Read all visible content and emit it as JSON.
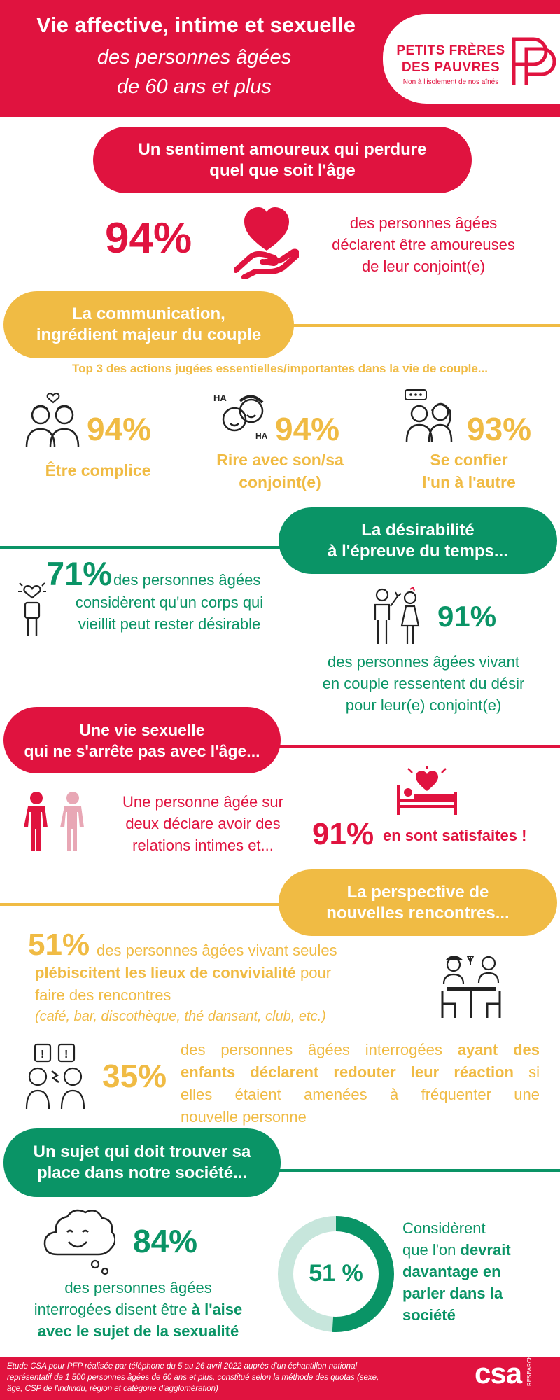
{
  "header": {
    "title": "Vie affective, intime et sexuelle",
    "subtitle_line1": "des personnes âgées",
    "subtitle_line2": "de 60 ans et plus",
    "logo_line1": "PETITS FRÈRES",
    "logo_line2": "DES PAUVRES",
    "logo_tagline": "Non à l'isolement de nos aînés"
  },
  "colors": {
    "red": "#e0133f",
    "yellow": "#f0bb44",
    "green": "#0a9466",
    "light_green": "#c7e6dc",
    "pink": "#e8a7b5"
  },
  "section1": {
    "title_line1": "Un sentiment amoureux qui perdure",
    "title_line2": "quel que soit l'âge",
    "stat": "94%",
    "icon": "heart-in-hand-icon",
    "text_line1": "des personnes âgées",
    "text_line2": "déclarent être amoureuses",
    "text_line3": "de leur conjoint(e)"
  },
  "section2": {
    "title_line1": "La communication,",
    "title_line2": "ingrédient majeur du couple",
    "subtitle": "Top 3 des actions jugées essentielles/importantes dans la vie de couple...",
    "items": [
      {
        "stat": "94%",
        "icon": "couple-love-icon",
        "label_line1": "Être complice",
        "label_line2": ""
      },
      {
        "stat": "94%",
        "icon": "laughing-couple-icon",
        "label_line1": "Rire avec son/sa",
        "label_line2": "conjoint(e)"
      },
      {
        "stat": "93%",
        "icon": "chatting-couple-icon",
        "label_line1": "Se confier",
        "label_line2": "l'un à l'autre"
      }
    ]
  },
  "section3": {
    "title_line1": "La désirabilité",
    "title_line2": "à l'épreuve du temps...",
    "stat1": "71%",
    "stat1_text_line1": "des personnes âgées",
    "stat1_text_line2": "considèrent qu'un corps qui",
    "stat1_text_line3": "vieillit peut rester désirable",
    "stat2": "91%",
    "stat2_text_line1": "des personnes âgées vivant",
    "stat2_text_line2": "en couple ressentent du désir",
    "stat2_text_line3": "pour leur(e) conjoint(e)"
  },
  "section4": {
    "title_line1": "Une vie sexuelle",
    "title_line2": "qui ne s'arrête pas avec l'âge...",
    "text_line1": "Une personne âgée sur",
    "text_line2": "deux déclare avoir des",
    "text_line3": "relations intimes et...",
    "stat": "91%",
    "stat_text": "en sont satisfaites !"
  },
  "section5": {
    "title_line1": "La perspective de",
    "title_line2": "nouvelles rencontres...",
    "stat1": "51%",
    "stat1_text_a": "des personnes âgées vivant seules",
    "stat1_text_b_bold": "plébiscitent les lieux de convivialité",
    "stat1_text_b_rest": " pour",
    "stat1_text_c": "faire des rencontres",
    "stat1_text_d": "(café, bar, discothèque, thé dansant, club, etc.)",
    "stat2": "35%",
    "stat2_line1_a": "des personnes âgées interrogées ",
    "stat2_line1_b": "ayant des",
    "stat2_line2_bold": "enfants déclarent redouter leur réaction",
    "stat2_line2_rest": " si",
    "stat2_line3": "elles étaient amenées à fréquenter une",
    "stat2_line4": "nouvelle personne"
  },
  "section6": {
    "title_line1": "Un sujet qui doit trouver sa",
    "title_line2": "place dans notre société...",
    "stat1": "84%",
    "stat1_text_line1": "des personnes âgées",
    "stat1_text_line2_a": "interrogées disent être ",
    "stat1_text_line2_b": "à l'aise",
    "stat1_text_line3": "avec le sujet de la sexualité",
    "donut_label": "51 %",
    "donut_value": 51,
    "text_line1": "Considèrent",
    "text_line2_a": "que l'on ",
    "text_line2_b": "devrait",
    "text_line3": "davantage en",
    "text_line4": "parler  dans la",
    "text_line5": "société"
  },
  "footer": {
    "text_line1": "Etude CSA pour PFP réalisée par téléphone du 5 au 26 avril 2022 auprès d'un échantillon national",
    "text_line2": "représentatif de 1 500 personnes âgées de 60 ans et plus, constitué selon la méthode des quotas (sexe,",
    "text_line3": "âge, CSP de l'individu, région et catégorie d'agglomération)",
    "logo": "csa",
    "logo_sub": "RESEARCH"
  }
}
